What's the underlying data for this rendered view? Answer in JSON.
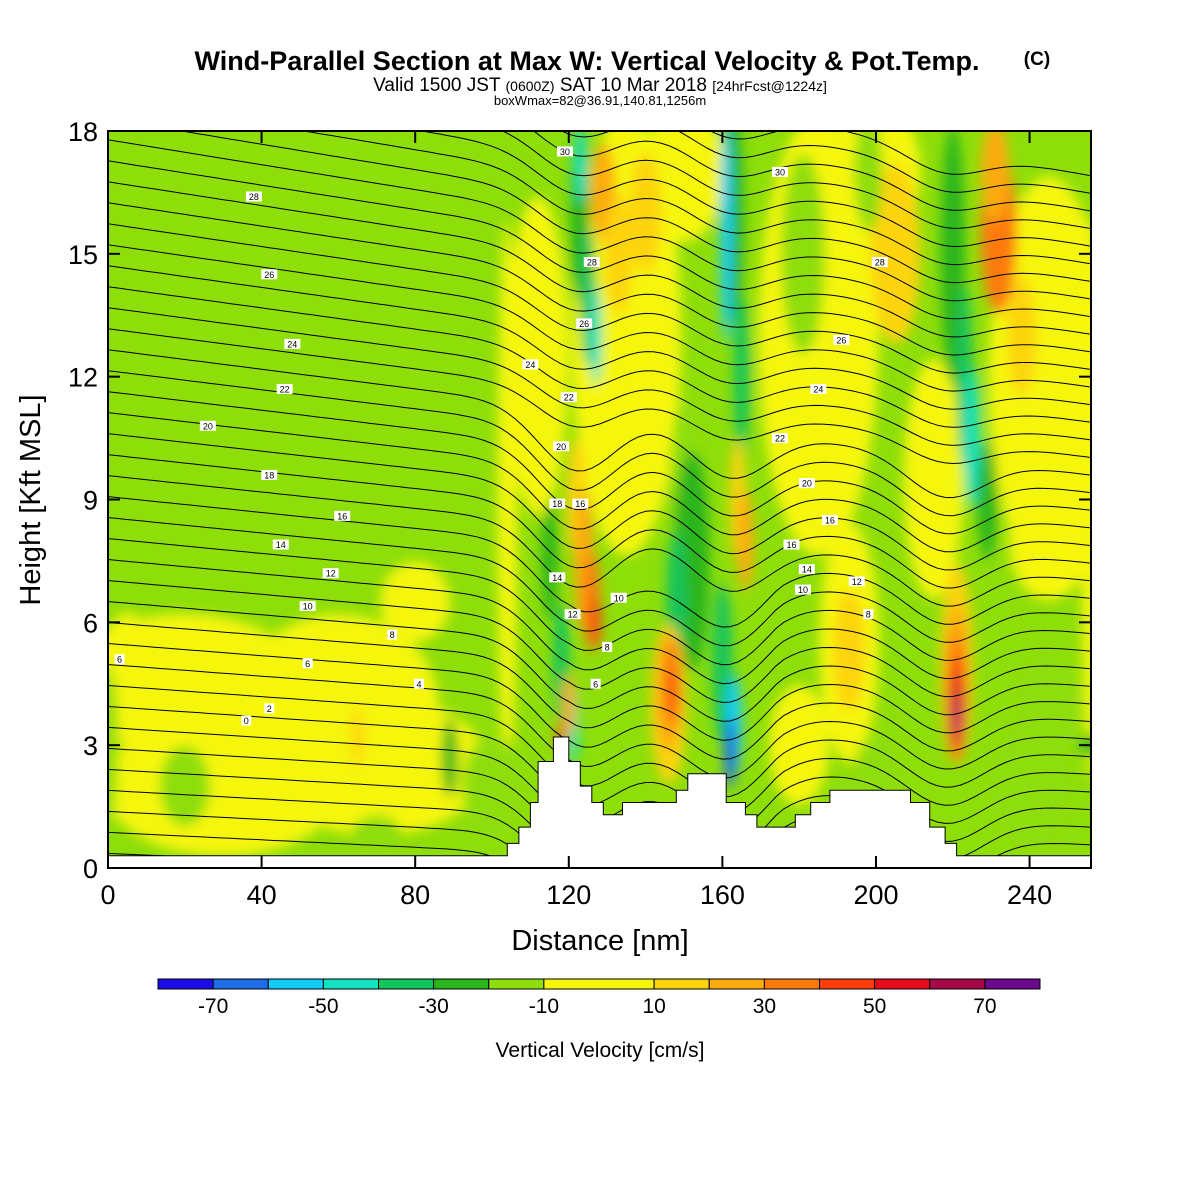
{
  "header": {
    "title": "Wind-Parallel Section at Max W: Vertical Velocity & Pot.Temp.",
    "copyright_mark": "(C)",
    "valid_prefix": "Valid 1500 JST",
    "valid_utc": "(0600Z)",
    "valid_date": "SAT 10 Mar 2018",
    "forecast_info": "[24hrFcst@1224z]",
    "box_info": "boxWmax=82@36.91,140.81,1256m"
  },
  "chart_data": {
    "type": "heatmap",
    "xlabel": "Distance [nm]",
    "ylabel": "Height [Kft MSL]",
    "xlim": [
      0,
      256
    ],
    "ylim": [
      0,
      18
    ],
    "x_ticks": [
      "0",
      "40",
      "80",
      "120",
      "160",
      "200",
      "240"
    ],
    "y_ticks": [
      "0",
      "3",
      "6",
      "9",
      "12",
      "15",
      "18"
    ],
    "colorbar": {
      "title": "Vertical Velocity [cm/s]",
      "tick_labels": [
        "-70",
        "-50",
        "-30",
        "-10",
        "10",
        "30",
        "50",
        "70"
      ],
      "colors": [
        "#1a0ee8",
        "#1d6be6",
        "#12cdfa",
        "#12e2c0",
        "#12c45c",
        "#2ab51a",
        "#8ede0a",
        "#f6f60a",
        "#fdd40a",
        "#fdaa0a",
        "#fd7a0a",
        "#fd3e0a",
        "#e60a1a",
        "#a60a46",
        "#6a0a8a"
      ],
      "bounds": [
        -80,
        -70,
        -60,
        -50,
        -40,
        -30,
        -20,
        -10,
        10,
        20,
        30,
        40,
        50,
        60,
        70,
        80
      ]
    },
    "terrain_top_kft": [
      [
        0,
        0.3
      ],
      [
        104,
        0.3
      ],
      [
        104,
        0.6
      ],
      [
        107,
        0.6
      ],
      [
        107,
        1.0
      ],
      [
        110,
        1.0
      ],
      [
        110,
        1.6
      ],
      [
        112,
        1.6
      ],
      [
        112,
        2.6
      ],
      [
        116,
        2.6
      ],
      [
        116,
        3.2
      ],
      [
        120,
        3.2
      ],
      [
        120,
        2.6
      ],
      [
        123,
        2.6
      ],
      [
        123,
        2.0
      ],
      [
        126,
        2.0
      ],
      [
        126,
        1.6
      ],
      [
        129,
        1.6
      ],
      [
        129,
        1.3
      ],
      [
        134,
        1.3
      ],
      [
        134,
        1.6
      ],
      [
        148,
        1.6
      ],
      [
        148,
        1.9
      ],
      [
        151,
        1.9
      ],
      [
        151,
        2.3
      ],
      [
        161,
        2.3
      ],
      [
        161,
        1.6
      ],
      [
        166,
        1.6
      ],
      [
        166,
        1.3
      ],
      [
        169,
        1.3
      ],
      [
        169,
        1.0
      ],
      [
        179,
        1.0
      ],
      [
        179,
        1.3
      ],
      [
        183,
        1.3
      ],
      [
        183,
        1.6
      ],
      [
        188,
        1.6
      ],
      [
        188,
        1.9
      ],
      [
        209,
        1.9
      ],
      [
        209,
        1.6
      ],
      [
        214,
        1.6
      ],
      [
        214,
        1.0
      ],
      [
        218,
        1.0
      ],
      [
        218,
        0.6
      ],
      [
        221,
        0.6
      ],
      [
        221,
        0.3
      ],
      [
        256,
        0.3
      ]
    ],
    "contour_labels": [
      {
        "text": "30",
        "x": 119,
        "y": 17.5
      },
      {
        "text": "30",
        "x": 175,
        "y": 17.0
      },
      {
        "text": "28",
        "x": 38,
        "y": 16.4
      },
      {
        "text": "28",
        "x": 126,
        "y": 14.8
      },
      {
        "text": "28",
        "x": 201,
        "y": 14.8
      },
      {
        "text": "26",
        "x": 42,
        "y": 14.5
      },
      {
        "text": "26",
        "x": 124,
        "y": 13.3
      },
      {
        "text": "26",
        "x": 191,
        "y": 12.9
      },
      {
        "text": "24",
        "x": 48,
        "y": 12.8
      },
      {
        "text": "24",
        "x": 110,
        "y": 12.3
      },
      {
        "text": "24",
        "x": 185,
        "y": 11.7
      },
      {
        "text": "22",
        "x": 46,
        "y": 11.7
      },
      {
        "text": "22",
        "x": 120,
        "y": 11.5
      },
      {
        "text": "22",
        "x": 175,
        "y": 10.5
      },
      {
        "text": "20",
        "x": 26,
        "y": 10.8
      },
      {
        "text": "20",
        "x": 118,
        "y": 10.3
      },
      {
        "text": "20",
        "x": 182,
        "y": 9.4
      },
      {
        "text": "18",
        "x": 42,
        "y": 9.6
      },
      {
        "text": "18",
        "x": 117,
        "y": 8.9
      },
      {
        "text": "16",
        "x": 61,
        "y": 8.6
      },
      {
        "text": "16",
        "x": 123,
        "y": 8.9
      },
      {
        "text": "16",
        "x": 188,
        "y": 8.5
      },
      {
        "text": "16",
        "x": 178,
        "y": 7.9
      },
      {
        "text": "14",
        "x": 45,
        "y": 7.9
      },
      {
        "text": "14",
        "x": 117,
        "y": 7.1
      },
      {
        "text": "14",
        "x": 182,
        "y": 7.3
      },
      {
        "text": "12",
        "x": 58,
        "y": 7.2
      },
      {
        "text": "12",
        "x": 121,
        "y": 6.2
      },
      {
        "text": "12",
        "x": 195,
        "y": 7.0
      },
      {
        "text": "10",
        "x": 52,
        "y": 6.4
      },
      {
        "text": "10",
        "x": 133,
        "y": 6.6
      },
      {
        "text": "10",
        "x": 181,
        "y": 6.8
      },
      {
        "text": "8",
        "x": 74,
        "y": 5.7
      },
      {
        "text": "8",
        "x": 130,
        "y": 5.4
      },
      {
        "text": "8",
        "x": 198,
        "y": 6.2
      },
      {
        "text": "6",
        "x": 3,
        "y": 5.1
      },
      {
        "text": "6",
        "x": 52,
        "y": 5.0
      },
      {
        "text": "6",
        "x": 127,
        "y": 4.5
      },
      {
        "text": "4",
        "x": 81,
        "y": 4.5
      },
      {
        "text": "2",
        "x": 42,
        "y": 3.9
      },
      {
        "text": "0",
        "x": 36,
        "y": 3.6
      }
    ]
  }
}
